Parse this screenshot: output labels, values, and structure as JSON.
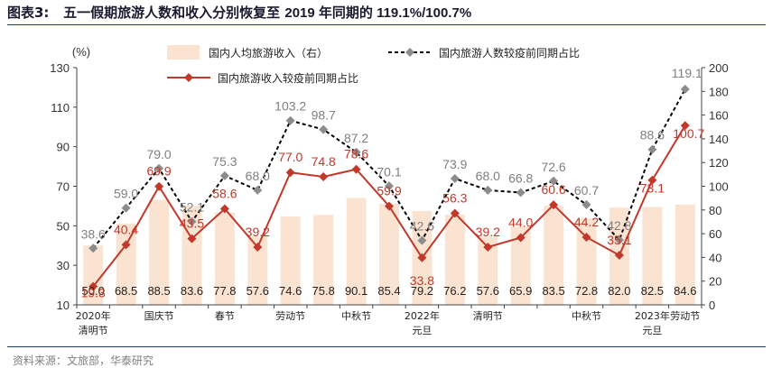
{
  "figure": {
    "title_label": "图表3:",
    "title_text": "五一假期旅游人数和收入分别恢复至",
    "title_tail": "2019 年同期的 119.1%/100.7%",
    "source": "资料来源：文旅部，华泰研究"
  },
  "chart_data": {
    "type": "bar",
    "categories": [
      "2020年清明节",
      "",
      "国庆节",
      "",
      "春节",
      "",
      "劳动节",
      "",
      "中秋节",
      "",
      "2022年元旦",
      "",
      "清明节",
      "",
      "",
      "中秋节",
      "",
      "2023年元旦",
      "劳动节"
    ],
    "x_tick_labels": [
      {
        "index": 0,
        "lines": [
          "2020年",
          "清明节"
        ]
      },
      {
        "index": 2,
        "lines": [
          "国庆节"
        ]
      },
      {
        "index": 4,
        "lines": [
          "春节"
        ]
      },
      {
        "index": 6,
        "lines": [
          "劳动节"
        ]
      },
      {
        "index": 8,
        "lines": [
          "中秋节"
        ]
      },
      {
        "index": 10,
        "lines": [
          "2022年",
          "元旦"
        ]
      },
      {
        "index": 12,
        "lines": [
          "清明节"
        ]
      },
      {
        "index": 15,
        "lines": [
          "中秋节"
        ]
      },
      {
        "index": 17,
        "lines": [
          "2023年",
          "元旦"
        ]
      },
      {
        "index": 18,
        "lines": [
          "劳动节"
        ]
      }
    ],
    "left_axis": {
      "label": "(%)",
      "ylim": [
        10,
        130
      ],
      "ticks": [
        10,
        30,
        50,
        70,
        90,
        110,
        130
      ]
    },
    "right_axis": {
      "ylim": [
        0,
        200
      ],
      "ticks": [
        0,
        20,
        40,
        60,
        80,
        100,
        120,
        140,
        160,
        180,
        200
      ]
    },
    "series": [
      {
        "name": "国内人均旅游收入（右）",
        "type": "bar",
        "axis": "right",
        "color": "#fbe3d2",
        "values": [
          50.0,
          68.5,
          88.5,
          83.6,
          77.8,
          57.6,
          74.6,
          75.8,
          90.1,
          85.4,
          79.2,
          76.2,
          57.6,
          65.9,
          83.5,
          72.8,
          82.0,
          82.5,
          84.6
        ]
      },
      {
        "name": "国内旅游人数较疫前同期占比",
        "type": "line",
        "axis": "left",
        "color": "#000000",
        "marker_color": "#8c8c8c",
        "dashed": true,
        "values": [
          38.6,
          59.0,
          79.0,
          52.1,
          75.3,
          68.0,
          103.2,
          98.7,
          87.2,
          70.1,
          42.6,
          73.9,
          68.0,
          66.8,
          72.6,
          60.7,
          42.8,
          88.6,
          119.1
        ]
      },
      {
        "name": "国内旅游收入较疫前同期占比",
        "type": "line",
        "axis": "left",
        "color": "#c0392b",
        "values": [
          19.3,
          40.4,
          69.9,
          43.5,
          58.6,
          39.2,
          77.0,
          74.8,
          78.6,
          59.9,
          33.8,
          56.3,
          39.2,
          44.0,
          60.6,
          44.2,
          35.1,
          73.1,
          100.7
        ]
      }
    ],
    "grid": false,
    "legend": "top"
  }
}
